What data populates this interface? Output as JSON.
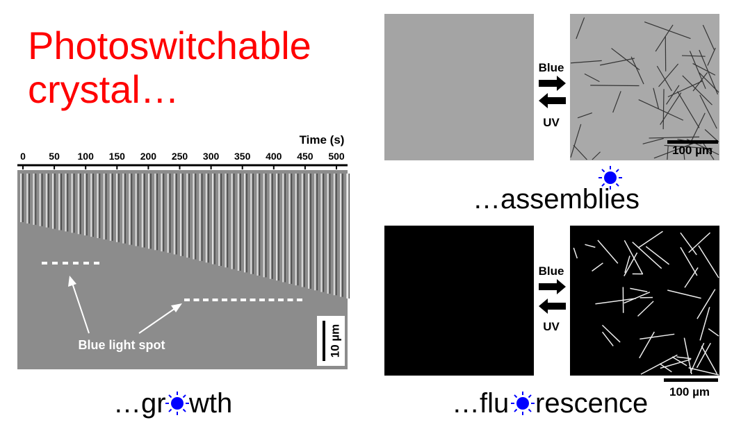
{
  "title": {
    "line1": "Photoswitchable",
    "line2": "crystal…"
  },
  "kymograph": {
    "time_label": "Time (s)",
    "ticks": [
      0,
      50,
      100,
      150,
      200,
      250,
      300,
      350,
      400,
      450,
      500
    ],
    "spot_label": "Blue light spot",
    "scale_label": "10 µm"
  },
  "growth_caption": {
    "before": "…gr",
    "after": "wth"
  },
  "assembly_panel": {
    "forward": "Blue",
    "backward": "UV",
    "scale_label": "100 µm",
    "caption": "…assemblies"
  },
  "fluorescence_panel": {
    "forward": "Blue",
    "backward": "UV",
    "scale_label": "100 µm"
  },
  "fluorescence_caption": {
    "before": "…flu",
    "after": "rescence"
  }
}
